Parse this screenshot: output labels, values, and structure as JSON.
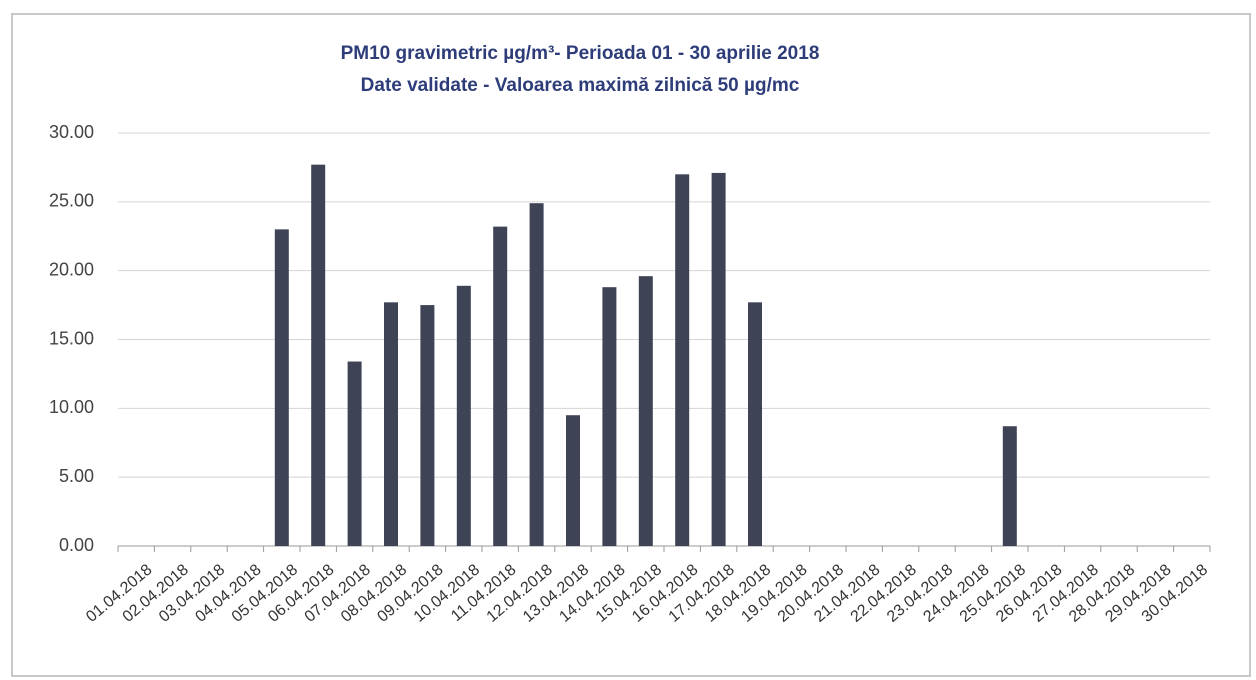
{
  "chart_data": {
    "type": "bar",
    "title": "PM10 gravimetric µg/m³- Perioada 01 - 30 aprilie 2018",
    "subtitle": "Date validate -  Valoarea maximă zilnică 50 µg/mc",
    "categories": [
      "01.04.2018",
      "02.04.2018",
      "03.04.2018",
      "04.04.2018",
      "05.04.2018",
      "06.04.2018",
      "07.04.2018",
      "08.04.2018",
      "09.04.2018",
      "10.04.2018",
      "11.04.2018",
      "12.04.2018",
      "13.04.2018",
      "14.04.2018",
      "15.04.2018",
      "16.04.2018",
      "17.04.2018",
      "18.04.2018",
      "19.04.2018",
      "20.04.2018",
      "21.04.2018",
      "22.04.2018",
      "23.04.2018",
      "24.04.2018",
      "25.04.2018",
      "26.04.2018",
      "27.04.2018",
      "28.04.2018",
      "29.04.2018",
      "30.04.2018"
    ],
    "values": [
      null,
      null,
      null,
      null,
      23.0,
      27.7,
      13.4,
      17.7,
      17.5,
      18.9,
      23.2,
      24.9,
      9.5,
      18.8,
      19.6,
      27.0,
      27.1,
      17.7,
      null,
      null,
      null,
      null,
      null,
      null,
      8.7,
      null,
      null,
      null,
      null,
      null
    ],
    "color": "#3e4456",
    "ylim": [
      0,
      30
    ],
    "yticks": [
      {
        "value": 0,
        "label": "0.00"
      },
      {
        "value": 5,
        "label": "5.00"
      },
      {
        "value": 10,
        "label": "10.00"
      },
      {
        "value": 15,
        "label": "15.00"
      },
      {
        "value": 20,
        "label": "20.00"
      },
      {
        "value": 25,
        "label": "25.00"
      },
      {
        "value": 30,
        "label": "30.00"
      }
    ],
    "grid": true
  }
}
